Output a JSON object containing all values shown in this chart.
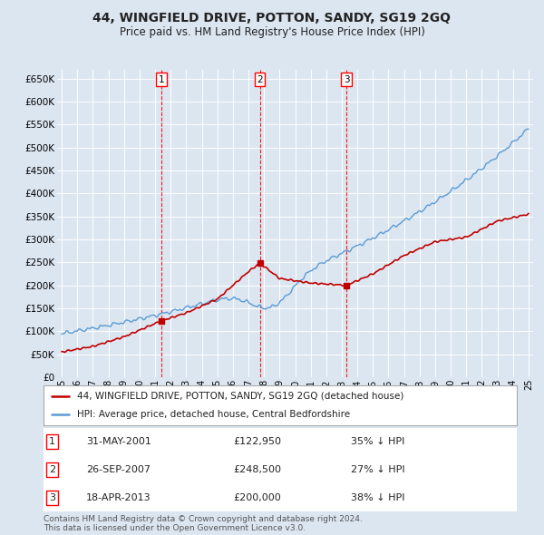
{
  "title": "44, WINGFIELD DRIVE, POTTON, SANDY, SG19 2GQ",
  "subtitle": "Price paid vs. HM Land Registry's House Price Index (HPI)",
  "ylabel_ticks": [
    "£0",
    "£50K",
    "£100K",
    "£150K",
    "£200K",
    "£250K",
    "£300K",
    "£350K",
    "£400K",
    "£450K",
    "£500K",
    "£550K",
    "£600K",
    "£650K"
  ],
  "ytick_values": [
    0,
    50000,
    100000,
    150000,
    200000,
    250000,
    300000,
    350000,
    400000,
    450000,
    500000,
    550000,
    600000,
    650000
  ],
  "xlim_start": 1994.7,
  "xlim_end": 2025.3,
  "ylim_min": 0,
  "ylim_max": 670000,
  "bg_color": "#dce6f1",
  "grid_color": "#ffffff",
  "hpi_line_color": "#5b9bd5",
  "price_line_color": "#c00000",
  "sales": [
    {
      "date_num": 2001.42,
      "price": 122950,
      "label": "1"
    },
    {
      "date_num": 2007.73,
      "price": 248500,
      "label": "2"
    },
    {
      "date_num": 2013.3,
      "price": 200000,
      "label": "3"
    }
  ],
  "legend_label_price": "44, WINGFIELD DRIVE, POTTON, SANDY, SG19 2GQ (detached house)",
  "legend_label_hpi": "HPI: Average price, detached house, Central Bedfordshire",
  "table_data": [
    {
      "num": "1",
      "date": "31-MAY-2001",
      "price": "£122,950",
      "hpi": "35% ↓ HPI"
    },
    {
      "num": "2",
      "date": "26-SEP-2007",
      "price": "£248,500",
      "hpi": "27% ↓ HPI"
    },
    {
      "num": "3",
      "date": "18-APR-2013",
      "price": "£200,000",
      "hpi": "38% ↓ HPI"
    }
  ],
  "footnote1": "Contains HM Land Registry data © Crown copyright and database right 2024.",
  "footnote2": "This data is licensed under the Open Government Licence v3.0."
}
